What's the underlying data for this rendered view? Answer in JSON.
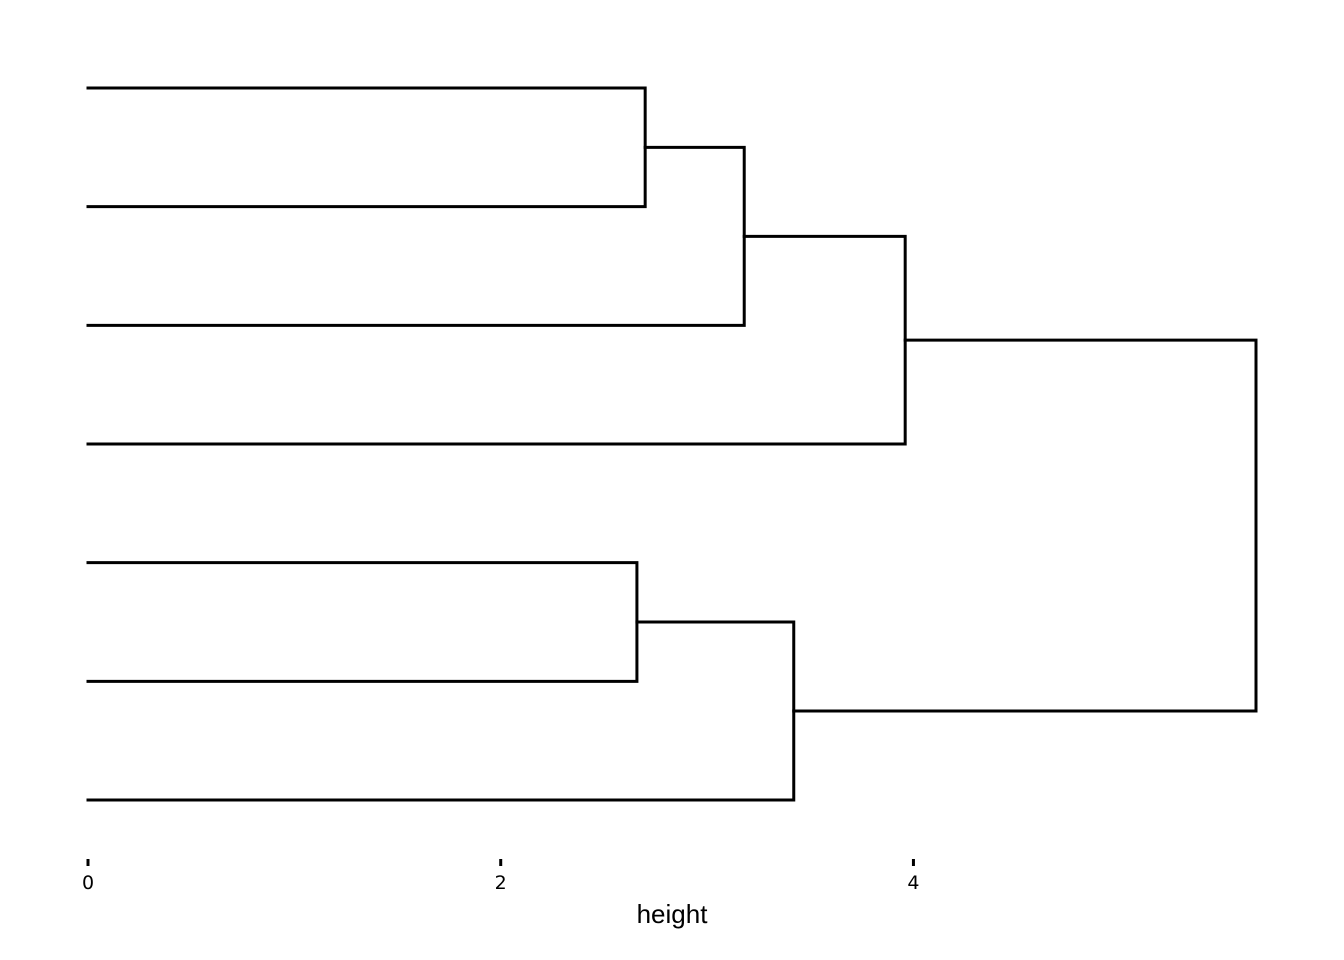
{
  "chart_data": {
    "type": "dendrogram",
    "orientation": "horizontal",
    "xlabel": "height",
    "xlim": [
      0,
      5.66
    ],
    "x_ticks": [
      0,
      2,
      4
    ],
    "x_tick_labels": [
      "0",
      "2",
      "4"
    ],
    "grid": false,
    "legend": "none",
    "leaf_count": 7,
    "merges": [
      {
        "id": "m1",
        "children": [
          "leaf0",
          "leaf1"
        ],
        "height": 2.7
      },
      {
        "id": "m2",
        "children": [
          "m1",
          "leaf2"
        ],
        "height": 3.18
      },
      {
        "id": "m3",
        "children": [
          "m2",
          "leaf3"
        ],
        "height": 3.96
      },
      {
        "id": "m4",
        "children": [
          "leaf4",
          "leaf5"
        ],
        "height": 2.66
      },
      {
        "id": "m5",
        "children": [
          "m4",
          "leaf6"
        ],
        "height": 3.42
      },
      {
        "id": "m6",
        "children": [
          "m3",
          "m5"
        ],
        "height": 5.66
      }
    ]
  }
}
